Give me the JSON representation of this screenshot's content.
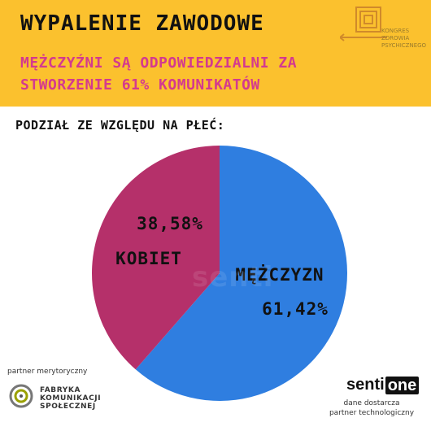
{
  "header": {
    "title": "WYPALENIE ZAWODOWE",
    "subtitle_line1": "MĘŻCZYŹNI SĄ ODPOWIEDZIALNI ZA",
    "subtitle_line2": "STWORZENIE 61% KOMUNIKATÓW",
    "background_color": "#fbc12e",
    "subtitle_color": "#d43a8e"
  },
  "top_logo": {
    "line1": "KONGRES",
    "line2": "ZDROWIA",
    "line3": "PSYCHICZNEGO",
    "icon": "maze-arrow-icon"
  },
  "section_label": "PODZIAŁ ZE WZGLĘDU NA PŁEĆ:",
  "chart_data": {
    "type": "pie",
    "slices": [
      {
        "label_pct": "38,58%",
        "label_name": "KOBIET",
        "value": 38.58,
        "color": "#b5306a"
      },
      {
        "label_pct": "61,42%",
        "label_name": "MĘŻCZYZN",
        "value": 61.42,
        "color": "#2f7ee0"
      }
    ]
  },
  "watermark": "senti",
  "footer": {
    "partner_left_label": "partner merytoryczny",
    "fks_line1": "FABRYKA",
    "fks_line2": "KOMUNIKACJI",
    "fks_line3": "SPOŁECZNEJ",
    "sentione_a": "senti",
    "sentione_b": "one",
    "right_caption_line1": "dane dostarcza",
    "right_caption_line2": "partner technologiczny"
  }
}
